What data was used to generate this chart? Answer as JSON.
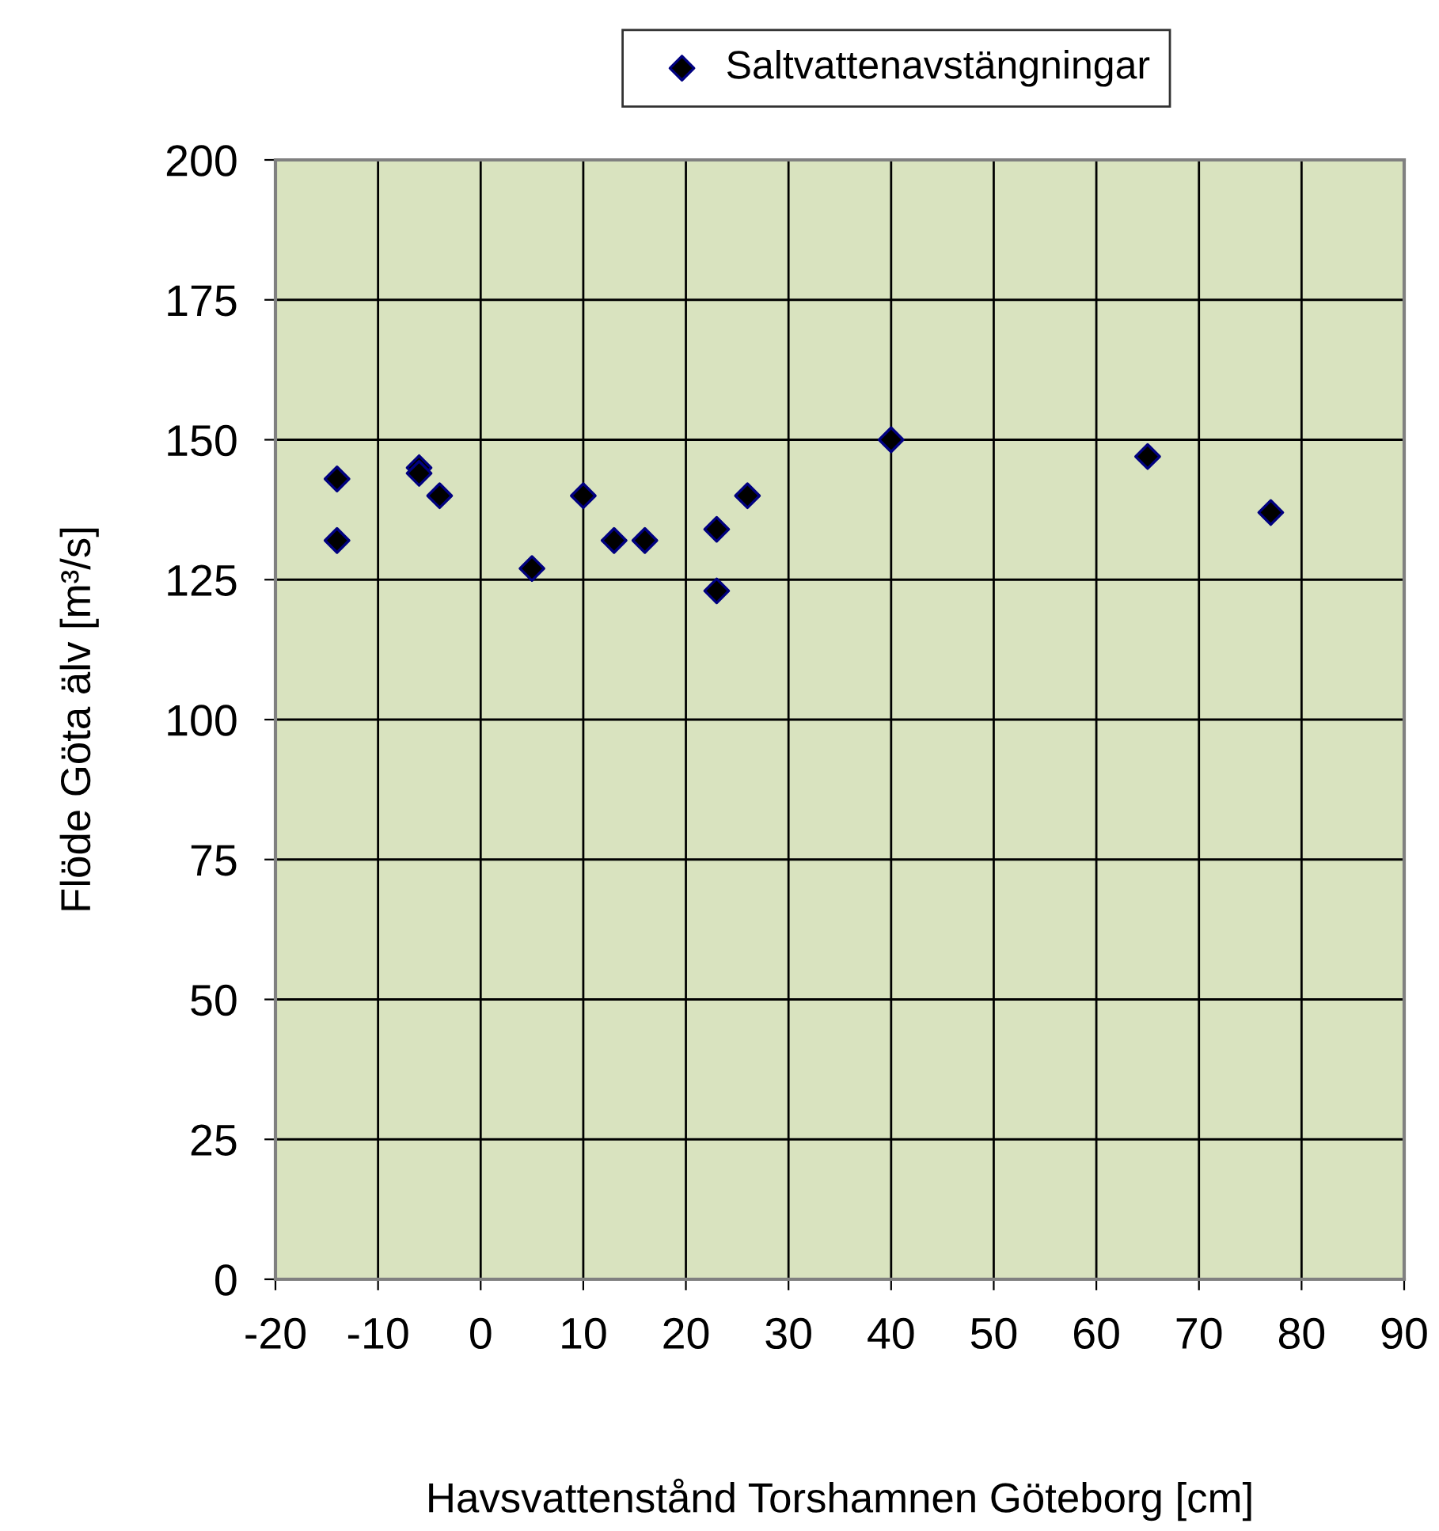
{
  "chart_data": {
    "type": "scatter",
    "xlabel": "Havsvattenstånd Torshamnen Göteborg [cm]",
    "ylabel": "Flöde Göta älv [m³/s]",
    "series": [
      {
        "name": "Saltvattenavstängningar",
        "color": "#000000",
        "x": [
          -14,
          -14,
          -6,
          -6,
          -4,
          5,
          10,
          13,
          16,
          23,
          23,
          26,
          40,
          65,
          77
        ],
        "values": [
          143,
          132,
          145,
          144,
          140,
          127,
          140,
          132,
          132,
          134,
          123,
          140,
          150,
          147,
          137
        ]
      }
    ],
    "xlim": [
      -20,
      90
    ],
    "xticks": [
      -20,
      -10,
      0,
      10,
      20,
      30,
      40,
      50,
      60,
      70,
      80,
      90
    ],
    "ylim": [
      0,
      200
    ],
    "yticks": [
      0,
      25,
      50,
      75,
      100,
      125,
      150,
      175,
      200
    ],
    "grid": true,
    "legend": "top",
    "marker": "diamond"
  }
}
